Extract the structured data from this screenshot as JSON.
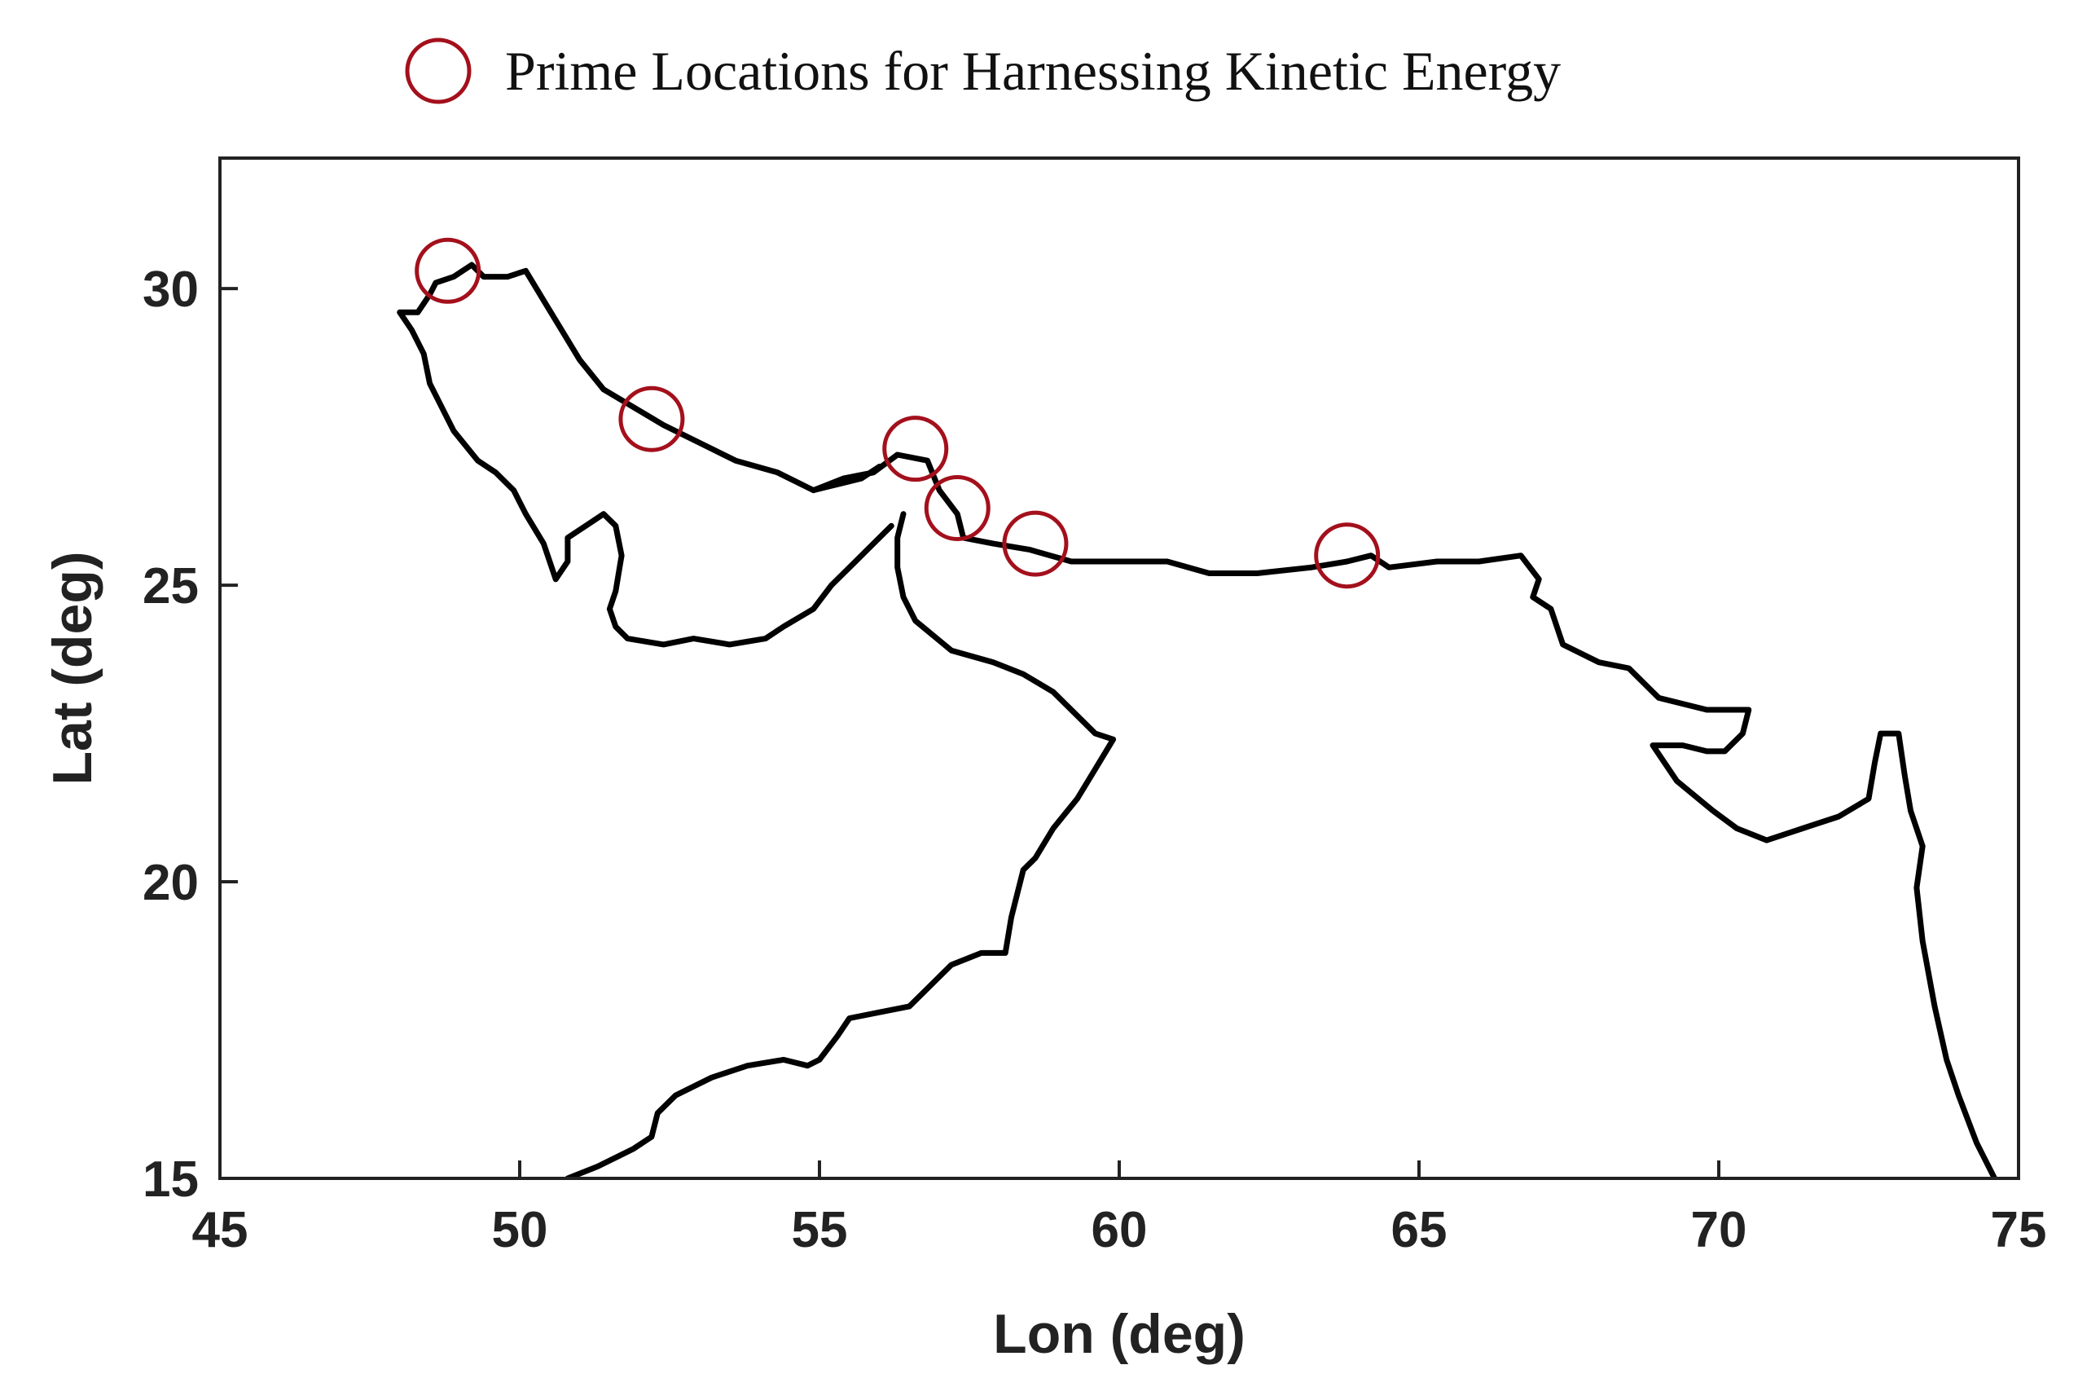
{
  "chart_data": {
    "type": "scatter",
    "title": "",
    "xlabel": "Lon (deg)",
    "ylabel": "Lat (deg)",
    "xlim": [
      45,
      75
    ],
    "ylim": [
      15,
      32.2
    ],
    "xticks": [
      45,
      50,
      55,
      60,
      65,
      70,
      75
    ],
    "yticks": [
      15,
      20,
      25,
      30
    ],
    "xtick_labels": [
      "45",
      "50",
      "55",
      "60",
      "65",
      "70",
      "75"
    ],
    "ytick_labels": [
      "15",
      "20",
      "25",
      "30"
    ],
    "grid": false,
    "legend": {
      "placement": "top-center",
      "entries": [
        {
          "label": "Prime Locations for Harnessing Kinetic Energy",
          "marker": "open-circle",
          "color": "#a3101c"
        }
      ]
    },
    "series": [
      {
        "name": "Prime Locations for Harnessing Kinetic Energy",
        "marker": "open-circle",
        "color": "#a3101c",
        "points": [
          {
            "lon": 48.8,
            "lat": 30.3
          },
          {
            "lon": 52.2,
            "lat": 27.8
          },
          {
            "lon": 56.6,
            "lat": 27.3
          },
          {
            "lon": 57.3,
            "lat": 26.3
          },
          {
            "lon": 58.6,
            "lat": 25.7
          },
          {
            "lon": 63.8,
            "lat": 25.5
          }
        ]
      }
    ],
    "coastline": {
      "color": "#000000",
      "lines": [
        [
          [
            48.0,
            29.6
          ],
          [
            48.3,
            29.6
          ],
          [
            48.5,
            29.9
          ],
          [
            48.6,
            30.1
          ],
          [
            48.9,
            30.2
          ],
          [
            49.2,
            30.4
          ],
          [
            49.4,
            30.2
          ],
          [
            49.8,
            30.2
          ],
          [
            50.1,
            30.3
          ],
          [
            50.4,
            29.8
          ],
          [
            50.7,
            29.3
          ],
          [
            51.0,
            28.8
          ],
          [
            51.4,
            28.3
          ],
          [
            51.9,
            28.0
          ],
          [
            52.4,
            27.7
          ],
          [
            53.0,
            27.4
          ],
          [
            53.6,
            27.1
          ],
          [
            54.3,
            26.9
          ],
          [
            54.9,
            26.6
          ],
          [
            55.4,
            26.8
          ],
          [
            55.9,
            26.9
          ],
          [
            56.3,
            27.2
          ],
          [
            56.8,
            27.1
          ],
          [
            57.0,
            26.6
          ],
          [
            57.3,
            26.2
          ],
          [
            57.4,
            25.8
          ],
          [
            57.9,
            25.7
          ],
          [
            58.5,
            25.6
          ],
          [
            59.2,
            25.4
          ],
          [
            60.0,
            25.4
          ],
          [
            60.8,
            25.4
          ],
          [
            61.5,
            25.2
          ],
          [
            62.3,
            25.2
          ],
          [
            63.2,
            25.3
          ],
          [
            63.8,
            25.4
          ],
          [
            64.2,
            25.5
          ],
          [
            64.5,
            25.3
          ],
          [
            65.3,
            25.4
          ],
          [
            66.0,
            25.4
          ],
          [
            66.7,
            25.5
          ],
          [
            67.0,
            25.1
          ],
          [
            66.9,
            24.8
          ],
          [
            67.2,
            24.6
          ],
          [
            67.4,
            24.0
          ],
          [
            68.0,
            23.7
          ],
          [
            68.5,
            23.6
          ],
          [
            69.0,
            23.1
          ],
          [
            69.8,
            22.9
          ],
          [
            70.5,
            22.9
          ],
          [
            70.4,
            22.5
          ],
          [
            70.1,
            22.2
          ],
          [
            69.8,
            22.2
          ],
          [
            69.4,
            22.3
          ],
          [
            68.9,
            22.3
          ],
          [
            69.3,
            21.7
          ],
          [
            69.9,
            21.2
          ],
          [
            70.3,
            20.9
          ],
          [
            70.8,
            20.7
          ],
          [
            71.4,
            20.9
          ],
          [
            72.0,
            21.1
          ],
          [
            72.5,
            21.4
          ],
          [
            72.6,
            22.0
          ],
          [
            72.7,
            22.5
          ],
          [
            73.0,
            22.5
          ],
          [
            73.1,
            21.8
          ],
          [
            73.2,
            21.2
          ],
          [
            73.4,
            20.6
          ],
          [
            73.3,
            19.9
          ],
          [
            73.4,
            19.0
          ],
          [
            73.6,
            17.9
          ],
          [
            73.8,
            17.0
          ],
          [
            74.0,
            16.4
          ],
          [
            74.3,
            15.6
          ],
          [
            74.6,
            15.0
          ]
        ],
        [
          [
            50.8,
            15.0
          ],
          [
            51.3,
            15.2
          ],
          [
            51.9,
            15.5
          ],
          [
            52.2,
            15.7
          ],
          [
            52.3,
            16.1
          ],
          [
            52.6,
            16.4
          ],
          [
            53.2,
            16.7
          ],
          [
            53.8,
            16.9
          ],
          [
            54.4,
            17.0
          ],
          [
            54.8,
            16.9
          ],
          [
            55.0,
            17.0
          ],
          [
            55.3,
            17.4
          ],
          [
            55.5,
            17.7
          ],
          [
            56.0,
            17.8
          ],
          [
            56.5,
            17.9
          ],
          [
            56.9,
            18.3
          ],
          [
            57.2,
            18.6
          ],
          [
            57.7,
            18.8
          ],
          [
            58.1,
            18.8
          ],
          [
            58.2,
            19.4
          ],
          [
            58.4,
            20.2
          ],
          [
            58.6,
            20.4
          ],
          [
            58.9,
            20.9
          ],
          [
            59.3,
            21.4
          ],
          [
            59.6,
            21.9
          ],
          [
            59.9,
            22.4
          ],
          [
            59.6,
            22.5
          ],
          [
            59.2,
            22.9
          ],
          [
            58.9,
            23.2
          ],
          [
            58.4,
            23.5
          ],
          [
            57.9,
            23.7
          ],
          [
            57.2,
            23.9
          ],
          [
            56.6,
            24.4
          ],
          [
            56.4,
            24.8
          ],
          [
            56.3,
            25.3
          ],
          [
            56.3,
            25.8
          ],
          [
            56.4,
            26.2
          ]
        ],
        [
          [
            56.2,
            26.0
          ],
          [
            55.8,
            25.6
          ],
          [
            55.6,
            25.4
          ],
          [
            55.2,
            25.0
          ],
          [
            54.9,
            24.6
          ],
          [
            54.4,
            24.3
          ],
          [
            54.1,
            24.1
          ],
          [
            53.5,
            24.0
          ],
          [
            52.9,
            24.1
          ],
          [
            52.4,
            24.0
          ],
          [
            51.8,
            24.1
          ],
          [
            51.6,
            24.3
          ],
          [
            51.5,
            24.6
          ],
          [
            51.6,
            24.9
          ],
          [
            51.7,
            25.5
          ],
          [
            51.6,
            26.0
          ],
          [
            51.4,
            26.2
          ],
          [
            51.1,
            26.0
          ],
          [
            50.8,
            25.8
          ],
          [
            50.8,
            25.4
          ],
          [
            50.6,
            25.1
          ],
          [
            50.4,
            25.7
          ],
          [
            50.1,
            26.2
          ],
          [
            49.9,
            26.6
          ],
          [
            49.6,
            26.9
          ],
          [
            49.3,
            27.1
          ],
          [
            48.9,
            27.6
          ],
          [
            48.7,
            28.0
          ],
          [
            48.5,
            28.4
          ],
          [
            48.4,
            28.9
          ],
          [
            48.2,
            29.3
          ],
          [
            48.0,
            29.6
          ]
        ],
        [
          [
            54.9,
            26.6
          ],
          [
            55.3,
            26.7
          ],
          [
            55.7,
            26.8
          ],
          [
            56.0,
            27.0
          ]
        ]
      ]
    }
  }
}
